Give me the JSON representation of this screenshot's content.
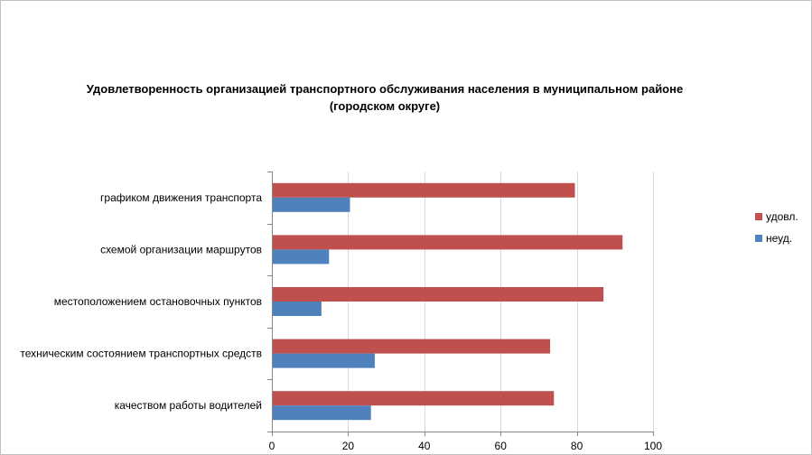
{
  "chart_data": {
    "type": "bar",
    "orientation": "horizontal",
    "title": "Удовлетворенность организацией транспортного обслуживания населения в муниципальном районе (городском округе)",
    "categories": [
      "графиком движения транспорта",
      "схемой организации маршрутов",
      "местоположением остановочных пунктов",
      "техническим состоянием транспортных средств",
      "качеством работы водителей"
    ],
    "series": [
      {
        "name": "удовл.",
        "values": [
          79.5,
          92,
          87,
          73,
          74
        ],
        "color": "#c0504d"
      },
      {
        "name": "неуд.",
        "values": [
          20.5,
          15,
          13,
          27,
          26
        ],
        "color": "#4f81bd"
      }
    ],
    "xlim": [
      0,
      100
    ],
    "xticks": [
      0,
      20,
      40,
      60,
      80,
      100
    ],
    "grid": true,
    "legend": "right"
  }
}
